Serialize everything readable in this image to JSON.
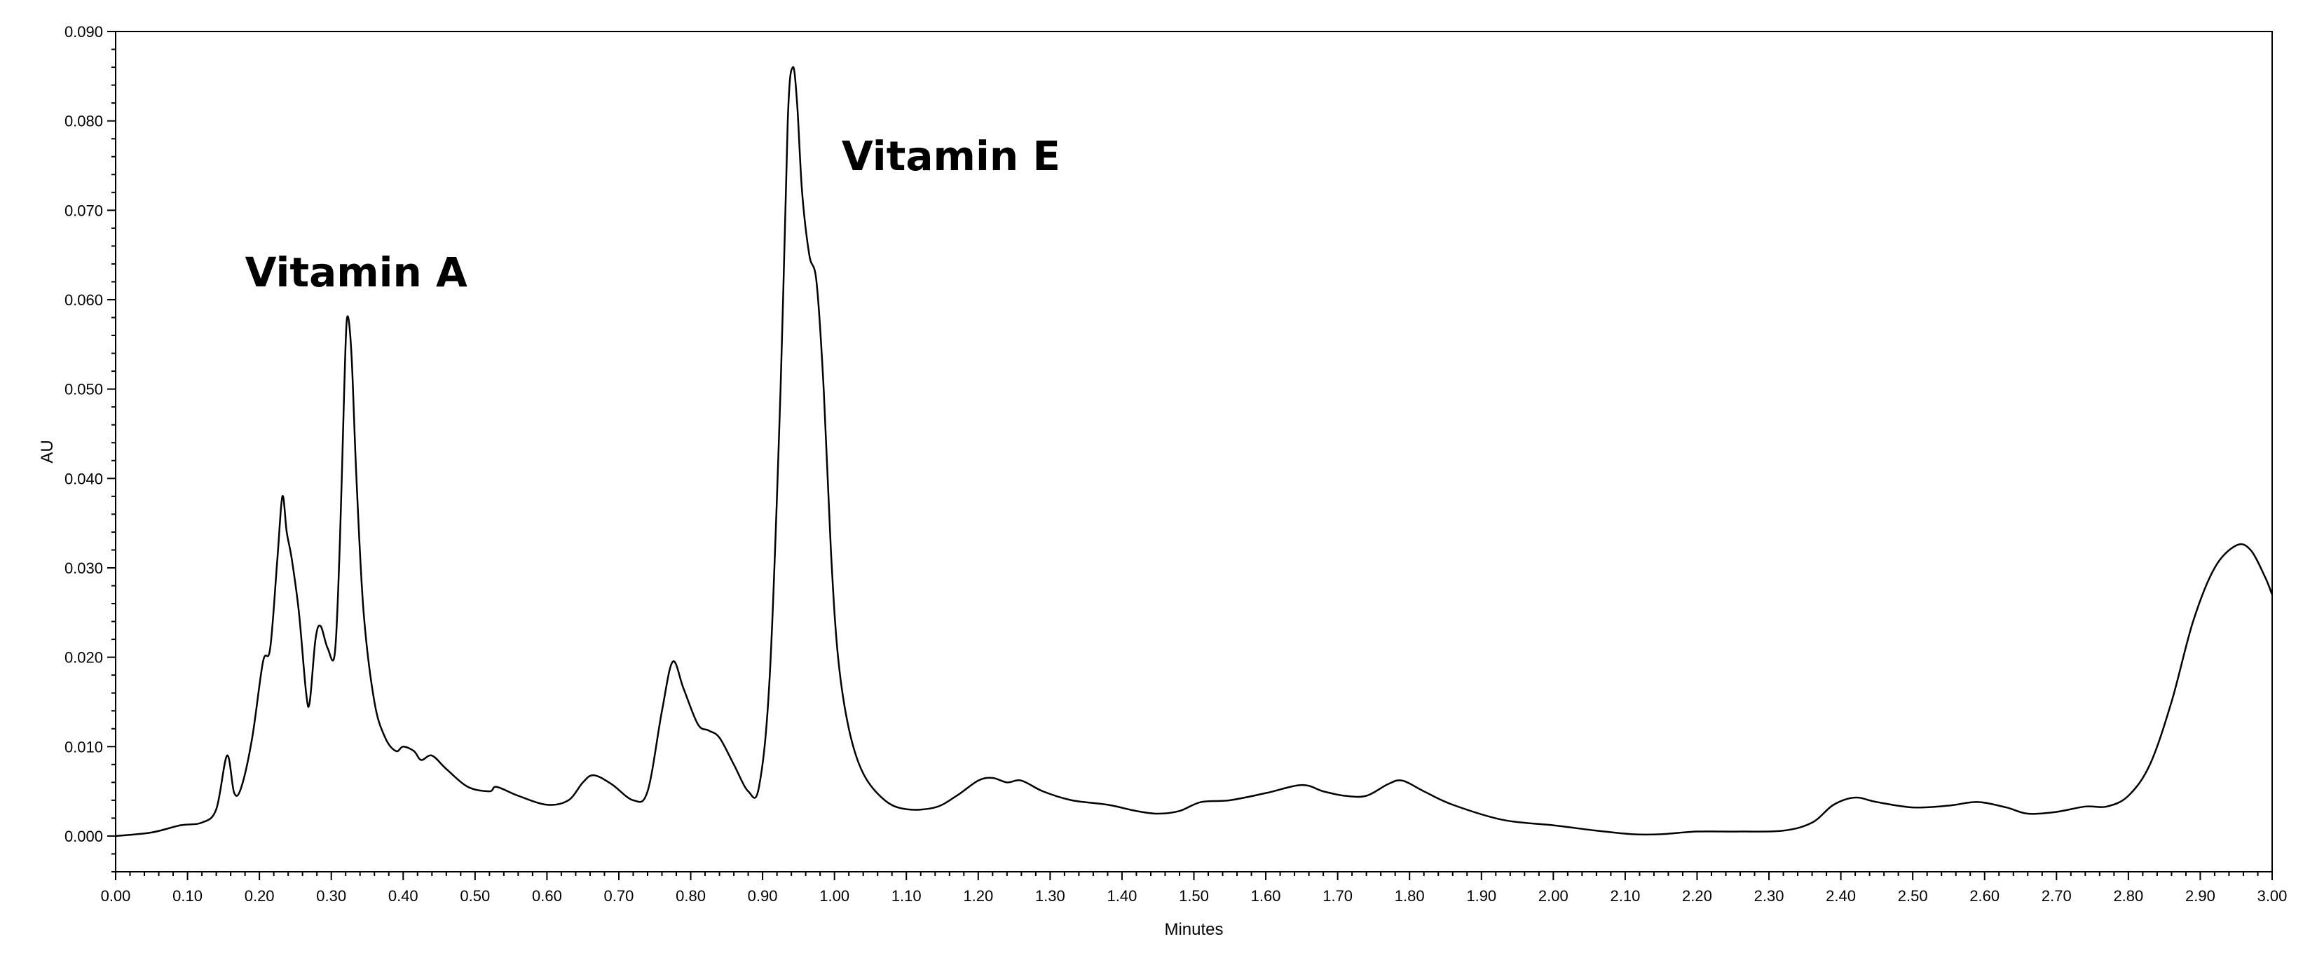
{
  "chart_data": {
    "type": "line",
    "title": "",
    "xlabel": "Minutes",
    "ylabel": "AU",
    "xlim": [
      0.0,
      3.0
    ],
    "ylim": [
      -0.004,
      0.09
    ],
    "x_major_step": 0.1,
    "x_minor_step": 0.02,
    "y_major_step": 0.01,
    "y_minor_step": 0.002,
    "x_tick_labels": [
      "0.00",
      "0.10",
      "0.20",
      "0.30",
      "0.40",
      "0.50",
      "0.60",
      "0.70",
      "0.80",
      "0.90",
      "1.00",
      "1.10",
      "1.20",
      "1.30",
      "1.40",
      "1.50",
      "1.60",
      "1.70",
      "1.80",
      "1.90",
      "2.00",
      "2.10",
      "2.20",
      "2.30",
      "2.40",
      "2.50",
      "2.60",
      "2.70",
      "2.80",
      "2.90",
      "3.00"
    ],
    "y_tick_labels": [
      "0.000",
      "0.010",
      "0.020",
      "0.030",
      "0.040",
      "0.050",
      "0.060",
      "0.070",
      "0.080",
      "0.090"
    ],
    "grid": false,
    "line_color": "#000000",
    "series": [
      {
        "points": [
          [
            0.0,
            0.0
          ],
          [
            0.05,
            0.0004
          ],
          [
            0.09,
            0.0012
          ],
          [
            0.12,
            0.0015
          ],
          [
            0.14,
            0.003
          ],
          [
            0.155,
            0.009
          ],
          [
            0.165,
            0.0048
          ],
          [
            0.175,
            0.0055
          ],
          [
            0.19,
            0.011
          ],
          [
            0.205,
            0.0195
          ],
          [
            0.215,
            0.021
          ],
          [
            0.225,
            0.031
          ],
          [
            0.232,
            0.038
          ],
          [
            0.238,
            0.034
          ],
          [
            0.245,
            0.031
          ],
          [
            0.255,
            0.025
          ],
          [
            0.265,
            0.016
          ],
          [
            0.27,
            0.015
          ],
          [
            0.278,
            0.022
          ],
          [
            0.285,
            0.0235
          ],
          [
            0.295,
            0.021
          ],
          [
            0.305,
            0.0205
          ],
          [
            0.312,
            0.033
          ],
          [
            0.318,
            0.05
          ],
          [
            0.322,
            0.058
          ],
          [
            0.328,
            0.054
          ],
          [
            0.335,
            0.04
          ],
          [
            0.345,
            0.025
          ],
          [
            0.36,
            0.015
          ],
          [
            0.375,
            0.011
          ],
          [
            0.39,
            0.0095
          ],
          [
            0.4,
            0.01
          ],
          [
            0.415,
            0.0095
          ],
          [
            0.425,
            0.0085
          ],
          [
            0.44,
            0.009
          ],
          [
            0.46,
            0.0075
          ],
          [
            0.49,
            0.0055
          ],
          [
            0.52,
            0.005
          ],
          [
            0.53,
            0.0055
          ],
          [
            0.56,
            0.0045
          ],
          [
            0.6,
            0.0035
          ],
          [
            0.63,
            0.004
          ],
          [
            0.65,
            0.006
          ],
          [
            0.665,
            0.0068
          ],
          [
            0.69,
            0.0058
          ],
          [
            0.72,
            0.004
          ],
          [
            0.74,
            0.005
          ],
          [
            0.76,
            0.014
          ],
          [
            0.775,
            0.0195
          ],
          [
            0.79,
            0.0165
          ],
          [
            0.81,
            0.0125
          ],
          [
            0.825,
            0.0118
          ],
          [
            0.84,
            0.011
          ],
          [
            0.86,
            0.008
          ],
          [
            0.88,
            0.005
          ],
          [
            0.895,
            0.0055
          ],
          [
            0.91,
            0.018
          ],
          [
            0.925,
            0.05
          ],
          [
            0.935,
            0.08
          ],
          [
            0.942,
            0.086
          ],
          [
            0.948,
            0.082
          ],
          [
            0.955,
            0.072
          ],
          [
            0.965,
            0.065
          ],
          [
            0.975,
            0.062
          ],
          [
            0.985,
            0.05
          ],
          [
            0.995,
            0.032
          ],
          [
            1.005,
            0.02
          ],
          [
            1.02,
            0.012
          ],
          [
            1.04,
            0.007
          ],
          [
            1.07,
            0.004
          ],
          [
            1.1,
            0.003
          ],
          [
            1.14,
            0.0032
          ],
          [
            1.17,
            0.0045
          ],
          [
            1.2,
            0.0062
          ],
          [
            1.22,
            0.0065
          ],
          [
            1.24,
            0.006
          ],
          [
            1.26,
            0.0062
          ],
          [
            1.29,
            0.005
          ],
          [
            1.33,
            0.004
          ],
          [
            1.38,
            0.0035
          ],
          [
            1.42,
            0.0028
          ],
          [
            1.45,
            0.0025
          ],
          [
            1.48,
            0.0028
          ],
          [
            1.51,
            0.0038
          ],
          [
            1.55,
            0.004
          ],
          [
            1.6,
            0.0048
          ],
          [
            1.65,
            0.0057
          ],
          [
            1.68,
            0.005
          ],
          [
            1.71,
            0.0045
          ],
          [
            1.74,
            0.0045
          ],
          [
            1.77,
            0.0058
          ],
          [
            1.79,
            0.0062
          ],
          [
            1.82,
            0.005
          ],
          [
            1.86,
            0.0035
          ],
          [
            1.93,
            0.0018
          ],
          [
            2.0,
            0.0012
          ],
          [
            2.06,
            0.0006
          ],
          [
            2.11,
            0.0002
          ],
          [
            2.15,
            0.0002
          ],
          [
            2.2,
            0.0005
          ],
          [
            2.26,
            0.0005
          ],
          [
            2.32,
            0.0006
          ],
          [
            2.36,
            0.0015
          ],
          [
            2.39,
            0.0035
          ],
          [
            2.42,
            0.0043
          ],
          [
            2.45,
            0.0038
          ],
          [
            2.5,
            0.0032
          ],
          [
            2.55,
            0.0034
          ],
          [
            2.59,
            0.0038
          ],
          [
            2.63,
            0.0032
          ],
          [
            2.66,
            0.0025
          ],
          [
            2.7,
            0.0027
          ],
          [
            2.74,
            0.0033
          ],
          [
            2.77,
            0.0033
          ],
          [
            2.8,
            0.0045
          ],
          [
            2.83,
            0.008
          ],
          [
            2.86,
            0.015
          ],
          [
            2.89,
            0.024
          ],
          [
            2.92,
            0.03
          ],
          [
            2.95,
            0.0325
          ],
          [
            2.97,
            0.032
          ],
          [
            2.99,
            0.029
          ],
          [
            3.0,
            0.027
          ]
        ]
      }
    ],
    "annotations": [
      {
        "text": "Vitamin A",
        "x": 0.18,
        "y": 0.0615
      },
      {
        "text": "Vitamin E",
        "x": 1.01,
        "y": 0.0745
      }
    ]
  }
}
